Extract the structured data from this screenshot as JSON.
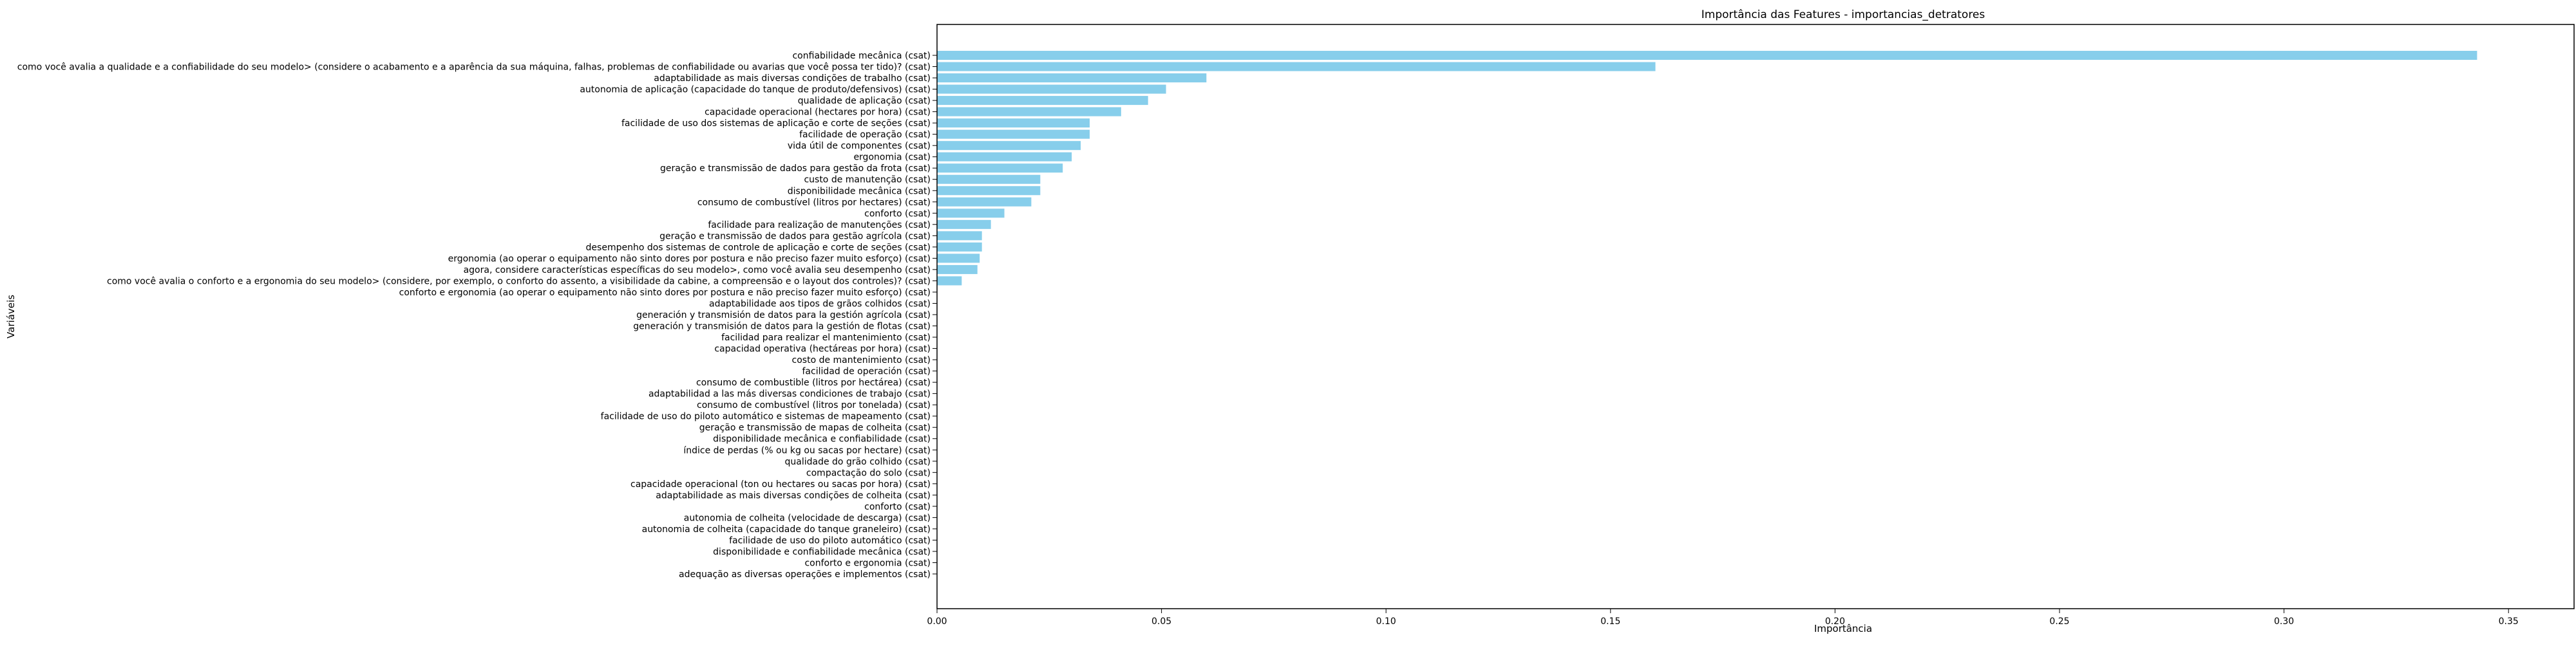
{
  "chart_data": {
    "type": "bar",
    "orientation": "horizontal",
    "title": "Importância das Features - importancias_detratores",
    "xlabel": "Importância",
    "ylabel": "Variáveis",
    "xlim": [
      0,
      0.35
    ],
    "xticks": [
      0.0,
      0.05,
      0.1,
      0.15,
      0.2,
      0.25,
      0.3,
      0.35
    ],
    "xtick_labels": [
      "0.00",
      "0.05",
      "0.10",
      "0.15",
      "0.20",
      "0.25",
      "0.30",
      "0.35"
    ],
    "grid": false,
    "bar_color": "#87ceeb",
    "categories": [
      "confiabilidade mecânica (csat)",
      "como você avalia a qualidade e a confiabilidade do seu modelo> (considere o acabamento e a aparência da sua máquina, falhas, problemas de confiabilidade ou avarias que você possa ter tido)? (csat)",
      "adaptabilidade as mais diversas condições de trabalho (csat)",
      "autonomia de aplicação (capacidade do tanque de produto/defensivos) (csat)",
      "qualidade de aplicação (csat)",
      "capacidade operacional (hectares por hora) (csat)",
      "facilidade de uso dos sistemas de aplicação e corte de seções (csat)",
      "facilidade de operação (csat)",
      "vida útil de componentes (csat)",
      "ergonomia (csat)",
      "geração e transmissão de dados para gestão da frota (csat)",
      "custo de manutenção (csat)",
      "disponibilidade mecânica (csat)",
      "consumo de combustível (litros por hectares) (csat)",
      "conforto (csat)",
      "facilidade para realização de manutenções (csat)",
      "geração e transmissão de dados para gestão agrícola (csat)",
      "desempenho dos sistemas de controle de aplicação e corte de seções (csat)",
      "ergonomia (ao operar o equipamento não sinto dores por postura e não preciso fazer muito esforço) (csat)",
      "agora, considere características específicas do seu modelo>, como você avalia seu desempenho (csat)",
      "como você avalia o conforto e a ergonomia do seu modelo>  (considere, por exemplo, o conforto do assento, a visibilidade da cabine, a compreensão e o layout dos controles)? (csat)",
      "conforto e ergonomia (ao operar o equipamento não sinto dores por postura e não preciso fazer muito esforço) (csat)",
      "adaptabilidade aos tipos de grãos colhidos (csat)",
      "generación y transmisión de datos para la gestión agrícola (csat)",
      "generación y transmisión de datos para la gestión de flotas (csat)",
      "facilidad para realizar el mantenimiento (csat)",
      "capacidad operativa (hectáreas por hora) (csat)",
      "costo de mantenimiento (csat)",
      "facilidad de operación (csat)",
      "consumo de combustible (litros por hectárea) (csat)",
      "adaptabilidad a las más diversas condiciones de trabajo (csat)",
      "consumo de combustível (litros por tonelada) (csat)",
      "facilidade de uso do piloto automático e sistemas de mapeamento (csat)",
      "geração e transmissão de mapas de colheita (csat)",
      "disponibilidade mecânica e confiabilidade (csat)",
      "índice de perdas (% ou kg ou sacas por hectare) (csat)",
      "qualidade do grão colhido (csat)",
      "compactação do solo (csat)",
      "capacidade operacional (ton ou hectares ou sacas por hora) (csat)",
      "adaptabilidade as mais diversas condições de colheita (csat)",
      "conforto  (csat)",
      "autonomia de colheita (velocidade de descarga) (csat)",
      "autonomia de colheita (capacidade do tanque graneleiro) (csat)",
      "facilidade de uso do piloto automático (csat)",
      "disponibilidade e confiabilidade mecânica  (csat)",
      "conforto e ergonomia (csat)",
      "adequação as diversas operações e implementos (csat)"
    ],
    "values": [
      0.343,
      0.16,
      0.06,
      0.051,
      0.047,
      0.041,
      0.034,
      0.034,
      0.032,
      0.03,
      0.028,
      0.023,
      0.023,
      0.021,
      0.015,
      0.012,
      0.01,
      0.01,
      0.0095,
      0.009,
      0.0055,
      0.0,
      0.0,
      0.0,
      0.0,
      0.0,
      0.0,
      0.0,
      0.0,
      0.0,
      0.0,
      0.0,
      0.0,
      0.0,
      0.0,
      0.0,
      0.0,
      0.0,
      0.0,
      0.0,
      0.0,
      0.0,
      0.0,
      0.0,
      0.0,
      0.0,
      0.0
    ]
  }
}
